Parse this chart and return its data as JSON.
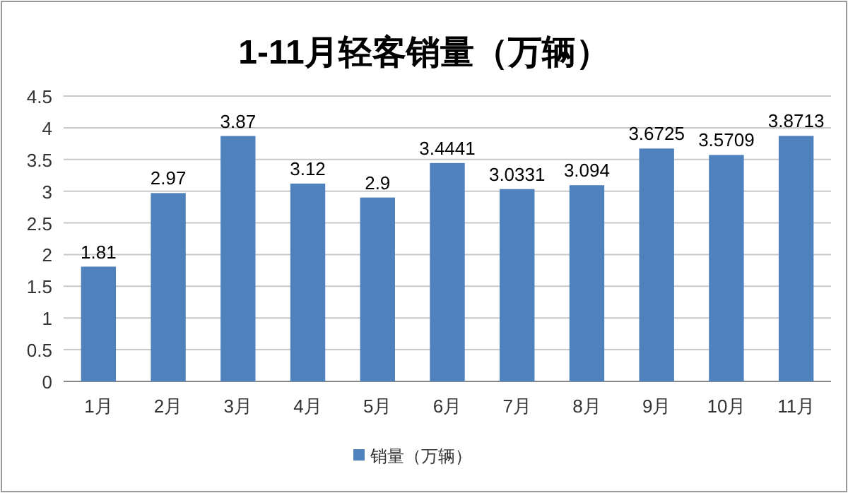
{
  "chart_data": {
    "type": "bar",
    "title": "1-11月轻客销量（万辆）",
    "categories": [
      "1月",
      "2月",
      "3月",
      "4月",
      "5月",
      "6月",
      "7月",
      "8月",
      "9月",
      "10月",
      "11月"
    ],
    "series": [
      {
        "name": "销量（万辆）",
        "color": "#4f81bd",
        "values": [
          1.81,
          2.97,
          3.87,
          3.12,
          2.9,
          3.4441,
          3.0331,
          3.094,
          3.6725,
          3.5709,
          3.8713
        ]
      }
    ],
    "ylim": [
      0,
      4.5
    ],
    "yticks": [
      0,
      0.5,
      1,
      1.5,
      2,
      2.5,
      3,
      3.5,
      4,
      4.5
    ],
    "grid": "y",
    "legend": "bottom",
    "data_labels": true
  }
}
